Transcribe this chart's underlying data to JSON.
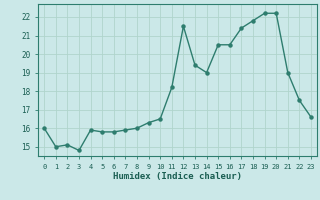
{
  "x": [
    0,
    1,
    2,
    3,
    4,
    5,
    6,
    7,
    8,
    9,
    10,
    11,
    12,
    13,
    14,
    15,
    16,
    17,
    18,
    19,
    20,
    21,
    22,
    23
  ],
  "y": [
    16.0,
    15.0,
    15.1,
    14.8,
    15.9,
    15.8,
    15.8,
    15.9,
    16.0,
    16.3,
    16.5,
    18.2,
    21.5,
    19.4,
    19.0,
    20.5,
    20.5,
    21.4,
    21.8,
    22.2,
    22.2,
    19.0,
    17.5,
    16.6
  ],
  "xlabel": "Humidex (Indice chaleur)",
  "ylim": [
    14.5,
    22.7
  ],
  "xlim": [
    -0.5,
    23.5
  ],
  "line_color": "#2e7d6e",
  "marker_color": "#2e7d6e",
  "bg_color": "#cbe8e8",
  "grid_major_color": "#b0d4cc",
  "grid_minor_color": "#c8e0d8",
  "yticks": [
    15,
    16,
    17,
    18,
    19,
    20,
    21,
    22
  ],
  "xticks": [
    0,
    1,
    2,
    3,
    4,
    5,
    6,
    7,
    8,
    9,
    10,
    11,
    12,
    13,
    14,
    15,
    16,
    17,
    18,
    19,
    20,
    21,
    22,
    23
  ],
  "tick_label_color": "#1a5e52",
  "xlabel_color": "#1a5e52",
  "spine_color": "#2e7d6e"
}
